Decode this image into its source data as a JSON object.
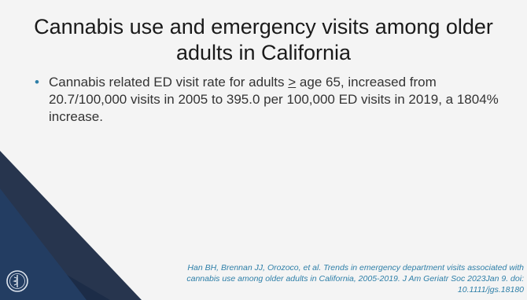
{
  "slide": {
    "title": "Cannabis use and emergency visits among older adults in California",
    "bullet": {
      "part1": "Cannabis related ED visit rate for adults ",
      "ge_symbol": ">",
      "part2": " age 65, increased from 20.7/100,000 visits in 2005 to 395.0 per 100,000 ED visits in 2019, a 1804% increase."
    },
    "citation": "Han BH, Brennan JJ, Orozoco, et al. Trends in emergency department visits associated with cannabis use among older adults in California, 2005-2019. J Am Geriatr Soc 2023Jan 9. doi: 10.1111/jgs.18180",
    "icons": {
      "logo": "medical-society-seal-icon",
      "bullet": "bullet-dot-icon"
    },
    "colors": {
      "background": "#f4f4f4",
      "accent": "#2e7fa8",
      "dark_navy": "#1b2a45",
      "mid_blue": "#233d62"
    }
  }
}
